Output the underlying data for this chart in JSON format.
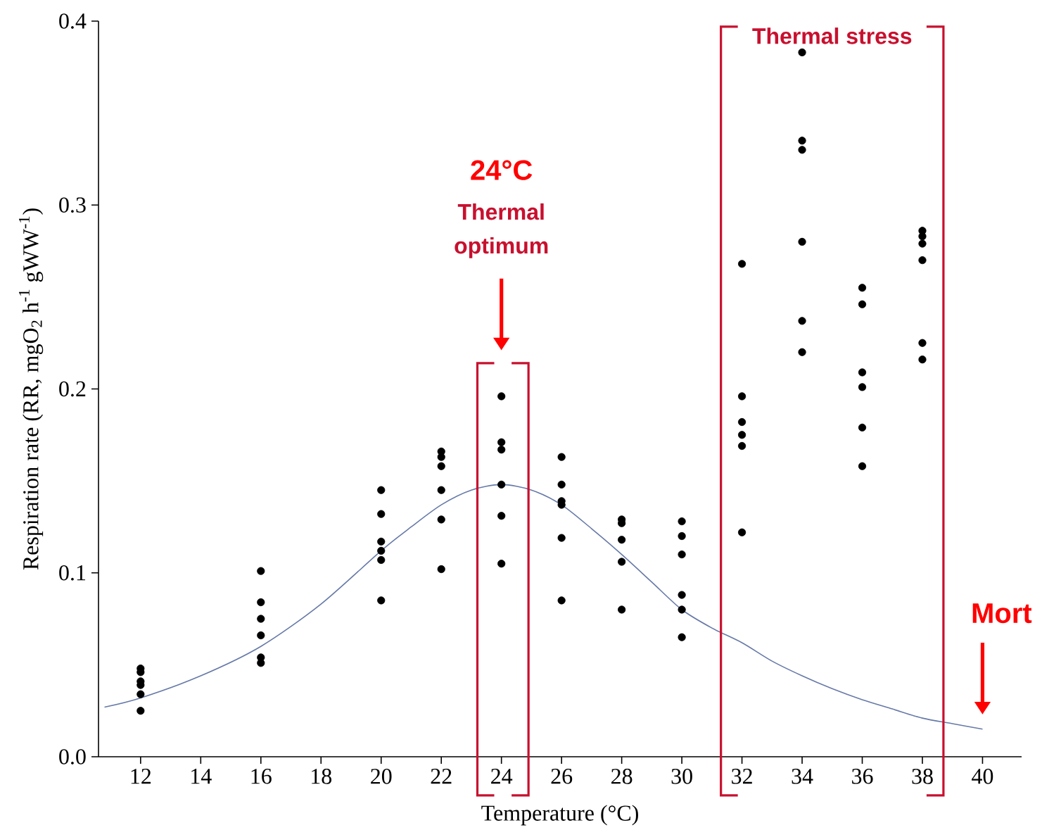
{
  "chart_data": {
    "type": "scatter",
    "xlabel": "Temperature (°C)",
    "ylabel": "Respiration rate (RR, mgO$_{2}$ h$^{-1}$ gWW$^{-1}$)",
    "xlim": [
      10.6,
      41.3
    ],
    "ylim": [
      0,
      0.4
    ],
    "xticks": [
      12,
      14,
      16,
      18,
      20,
      22,
      24,
      26,
      28,
      30,
      32,
      34,
      36,
      38,
      40
    ],
    "yticks": [
      {
        "value": 0,
        "label": "0.0"
      },
      0.1,
      0.2,
      0.3,
      0.4
    ],
    "series": [
      {
        "color": "#000000",
        "marker": "circle",
        "x": [
          12,
          12,
          12,
          12,
          12,
          12,
          16,
          16,
          16,
          16,
          16,
          16,
          20,
          20,
          20,
          20,
          20,
          20,
          22,
          22,
          22,
          22,
          22,
          22,
          24,
          24,
          24,
          24,
          24,
          24,
          26,
          26,
          26,
          26,
          26,
          26,
          28,
          28,
          28,
          28,
          28,
          30,
          30,
          30,
          30,
          30,
          30,
          32,
          32,
          32,
          32,
          32,
          32,
          34,
          34,
          34,
          34,
          34,
          34,
          36,
          36,
          36,
          36,
          36,
          36,
          38,
          38,
          38,
          38,
          38,
          38
        ],
        "values": [
          0.048,
          0.046,
          0.041,
          0.039,
          0.034,
          0.025,
          0.101,
          0.084,
          0.075,
          0.066,
          0.054,
          0.051,
          0.145,
          0.132,
          0.117,
          0.112,
          0.107,
          0.085,
          0.166,
          0.163,
          0.158,
          0.145,
          0.129,
          0.102,
          0.196,
          0.171,
          0.167,
          0.148,
          0.131,
          0.105,
          0.163,
          0.148,
          0.139,
          0.137,
          0.119,
          0.085,
          0.129,
          0.127,
          0.118,
          0.106,
          0.08,
          0.128,
          0.12,
          0.11,
          0.088,
          0.08,
          0.065,
          0.268,
          0.196,
          0.182,
          0.175,
          0.169,
          0.122,
          0.383,
          0.335,
          0.33,
          0.28,
          0.237,
          0.22,
          0.255,
          0.246,
          0.209,
          0.201,
          0.179,
          0.158,
          0.286,
          0.283,
          0.279,
          0.27,
          0.225,
          0.216
        ]
      },
      {
        "type": "line",
        "color": "#6679a8",
        "marker": "none",
        "x": [
          10.8,
          12,
          14,
          16,
          18,
          20,
          21,
          22,
          23,
          24,
          25,
          26,
          27,
          28,
          29,
          30,
          31,
          32,
          33,
          34,
          35,
          36,
          37,
          38,
          39,
          40
        ],
        "values": [
          0.027,
          0.032,
          0.044,
          0.06,
          0.083,
          0.112,
          0.125,
          0.137,
          0.145,
          0.148,
          0.145,
          0.137,
          0.124,
          0.11,
          0.095,
          0.08,
          0.07,
          0.062,
          0.052,
          0.044,
          0.037,
          0.031,
          0.026,
          0.021,
          0.018,
          0.015
        ]
      }
    ],
    "annotations": [
      "24°C",
      "Thermal optimum",
      "Thermal stress",
      "Mort"
    ]
  }
}
